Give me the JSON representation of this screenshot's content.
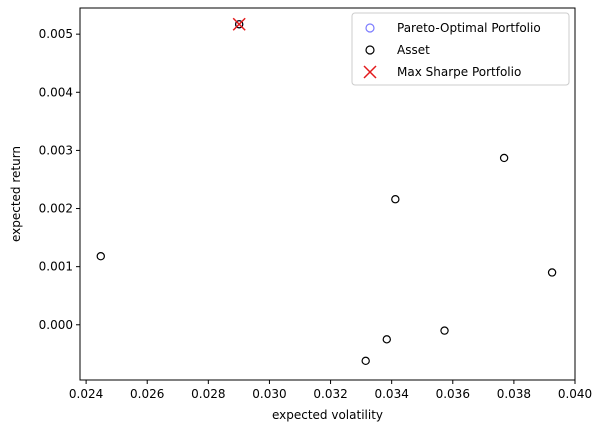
{
  "chart_data": {
    "type": "scatter",
    "xlabel": "expected volatility",
    "ylabel": "expected return",
    "xlim": [
      0.0238,
      0.04
    ],
    "ylim": [
      -0.00095,
      0.00545
    ],
    "xticks": [
      "0.024",
      "0.026",
      "0.028",
      "0.030",
      "0.032",
      "0.034",
      "0.036",
      "0.038",
      "0.040"
    ],
    "yticks": [
      "0.000",
      "0.001",
      "0.002",
      "0.003",
      "0.004",
      "0.005"
    ],
    "legend_position": "top-right",
    "series": [
      {
        "name": "Pareto-Optimal Portfolio",
        "marker": "hollow-circle",
        "color": "#7b7bff",
        "points": [
          [
            0.02901,
            0.00517
          ]
        ]
      },
      {
        "name": "Asset",
        "marker": "hollow-circle",
        "color": "#000000",
        "points": [
          [
            0.02448,
            0.00118
          ],
          [
            0.02901,
            0.00517
          ],
          [
            0.03315,
            -0.00062
          ],
          [
            0.03384,
            -0.00025
          ],
          [
            0.03412,
            0.00216
          ],
          [
            0.03573,
            -0.0001
          ],
          [
            0.03768,
            0.00287
          ],
          [
            0.03925,
            0.0009
          ]
        ]
      },
      {
        "name": "Max Sharpe Portfolio",
        "marker": "x",
        "color": "#e31a1c",
        "points": [
          [
            0.02901,
            0.00517
          ]
        ]
      }
    ]
  }
}
